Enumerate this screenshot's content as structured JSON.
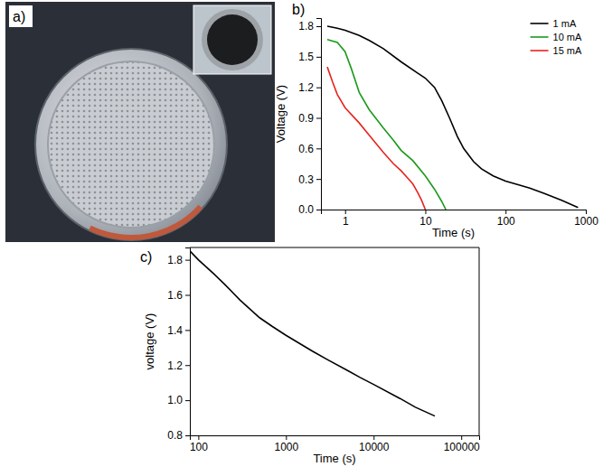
{
  "photo": {
    "panel_label": "a)"
  },
  "chart_data": [
    {
      "type": "line",
      "panel_label": "b)",
      "x_label": "Time (s)",
      "y_label": "Voltage (V)",
      "log": "x",
      "grid": false,
      "legend": "upper right",
      "xlim": [
        0.5,
        1000
      ],
      "xticks": [
        1,
        10,
        100,
        1000
      ],
      "ylim": [
        0,
        1.88
      ],
      "yticks": [
        {
          "value": 0,
          "label": "0.0"
        },
        0.3,
        0.6,
        0.9,
        1.2,
        1.5,
        1.8
      ],
      "series": [
        {
          "name": "1 mA",
          "color": "#000000",
          "x": [
            0.6,
            0.8,
            1,
            1.5,
            2,
            3,
            5,
            8,
            10,
            13,
            16,
            20,
            25,
            30,
            40,
            50,
            70,
            100,
            150,
            200,
            300,
            500,
            700,
            800
          ],
          "values": [
            1.8,
            1.78,
            1.76,
            1.71,
            1.66,
            1.58,
            1.45,
            1.34,
            1.29,
            1.2,
            1.07,
            0.9,
            0.72,
            0.6,
            0.47,
            0.4,
            0.33,
            0.28,
            0.24,
            0.21,
            0.16,
            0.09,
            0.04,
            0.02
          ]
        },
        {
          "name": "10 mA",
          "color": "#1a9a1a",
          "x": [
            0.6,
            0.8,
            1,
            1.2,
            1.5,
            2,
            3,
            4,
            5,
            7,
            10,
            13,
            16,
            18
          ],
          "values": [
            1.67,
            1.64,
            1.55,
            1.38,
            1.15,
            0.98,
            0.8,
            0.68,
            0.58,
            0.48,
            0.33,
            0.2,
            0.08,
            0.0
          ]
        },
        {
          "name": "15 mA",
          "color": "#e8221c",
          "x": [
            0.6,
            0.7,
            0.8,
            1,
            1.5,
            2,
            3,
            4,
            5,
            6,
            7,
            8,
            9,
            10
          ],
          "values": [
            1.4,
            1.25,
            1.13,
            1.0,
            0.85,
            0.73,
            0.56,
            0.45,
            0.38,
            0.31,
            0.25,
            0.17,
            0.09,
            0.0
          ]
        }
      ]
    },
    {
      "type": "line",
      "panel_label": "c)",
      "x_label": "Time (s)",
      "y_label": "voltage (V)",
      "log": "x",
      "grid": false,
      "color": "#000000",
      "xlim": [
        80,
        160000
      ],
      "xticks": [
        100,
        1000,
        10000,
        100000
      ],
      "ylim": [
        0.8,
        1.87
      ],
      "yticks": [
        0.8,
        {
          "value": 1,
          "label": "1.0"
        },
        1.2,
        1.4,
        1.6,
        1.8
      ],
      "x": [
        80,
        100,
        150,
        200,
        300,
        500,
        700,
        1000,
        2000,
        3000,
        5000,
        7000,
        10000,
        20000,
        30000,
        50000
      ],
      "values": [
        1.85,
        1.8,
        1.72,
        1.66,
        1.57,
        1.47,
        1.42,
        1.37,
        1.28,
        1.23,
        1.17,
        1.13,
        1.09,
        1.01,
        0.96,
        0.91
      ]
    }
  ]
}
